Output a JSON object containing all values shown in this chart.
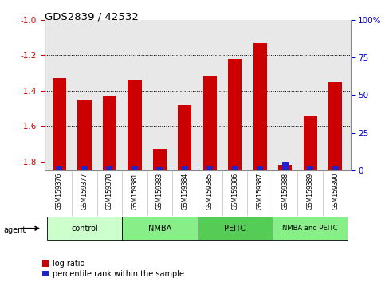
{
  "title": "GDS2839 / 42532",
  "samples": [
    "GSM159376",
    "GSM159377",
    "GSM159378",
    "GSM159381",
    "GSM159383",
    "GSM159384",
    "GSM159385",
    "GSM159386",
    "GSM159387",
    "GSM159388",
    "GSM159389",
    "GSM159390"
  ],
  "log_ratio": [
    -1.33,
    -1.45,
    -1.43,
    -1.34,
    -1.73,
    -1.48,
    -1.32,
    -1.22,
    -1.13,
    -1.82,
    -1.54,
    -1.35
  ],
  "percentile_rank": [
    3.0,
    3.0,
    3.0,
    3.0,
    2.0,
    3.0,
    3.0,
    3.0,
    3.0,
    6.0,
    3.0,
    3.0
  ],
  "ylim_left": [
    -1.85,
    -1.0
  ],
  "ylim_right": [
    0,
    100
  ],
  "yticks_left": [
    -1.8,
    -1.6,
    -1.4,
    -1.2,
    -1.0
  ],
  "yticks_right": [
    0,
    25,
    50,
    75,
    100
  ],
  "ytick_labels_right": [
    "0",
    "25",
    "50",
    "75",
    "100%"
  ],
  "bar_color_red": "#cc0000",
  "bar_color_blue": "#2222cc",
  "group_labels": [
    "control",
    "NMBA",
    "PEITC",
    "NMBA and PEITC"
  ],
  "group_ranges": [
    [
      0,
      3
    ],
    [
      3,
      6
    ],
    [
      6,
      9
    ],
    [
      9,
      12
    ]
  ],
  "group_colors": [
    "#ccffcc",
    "#88ee88",
    "#55cc55",
    "#88ee88"
  ],
  "agent_label": "agent",
  "legend_red_label": "log ratio",
  "legend_blue_label": "percentile rank within the sample",
  "bar_width": 0.55,
  "blue_bar_width": 0.25,
  "bg_color": "#ffffff",
  "plot_bg_color": "#e8e8e8",
  "tick_label_color_left": "#cc0000",
  "tick_label_color_right": "#0000cc",
  "grid_color": "#000000",
  "xlim": [
    -0.6,
    11.6
  ]
}
